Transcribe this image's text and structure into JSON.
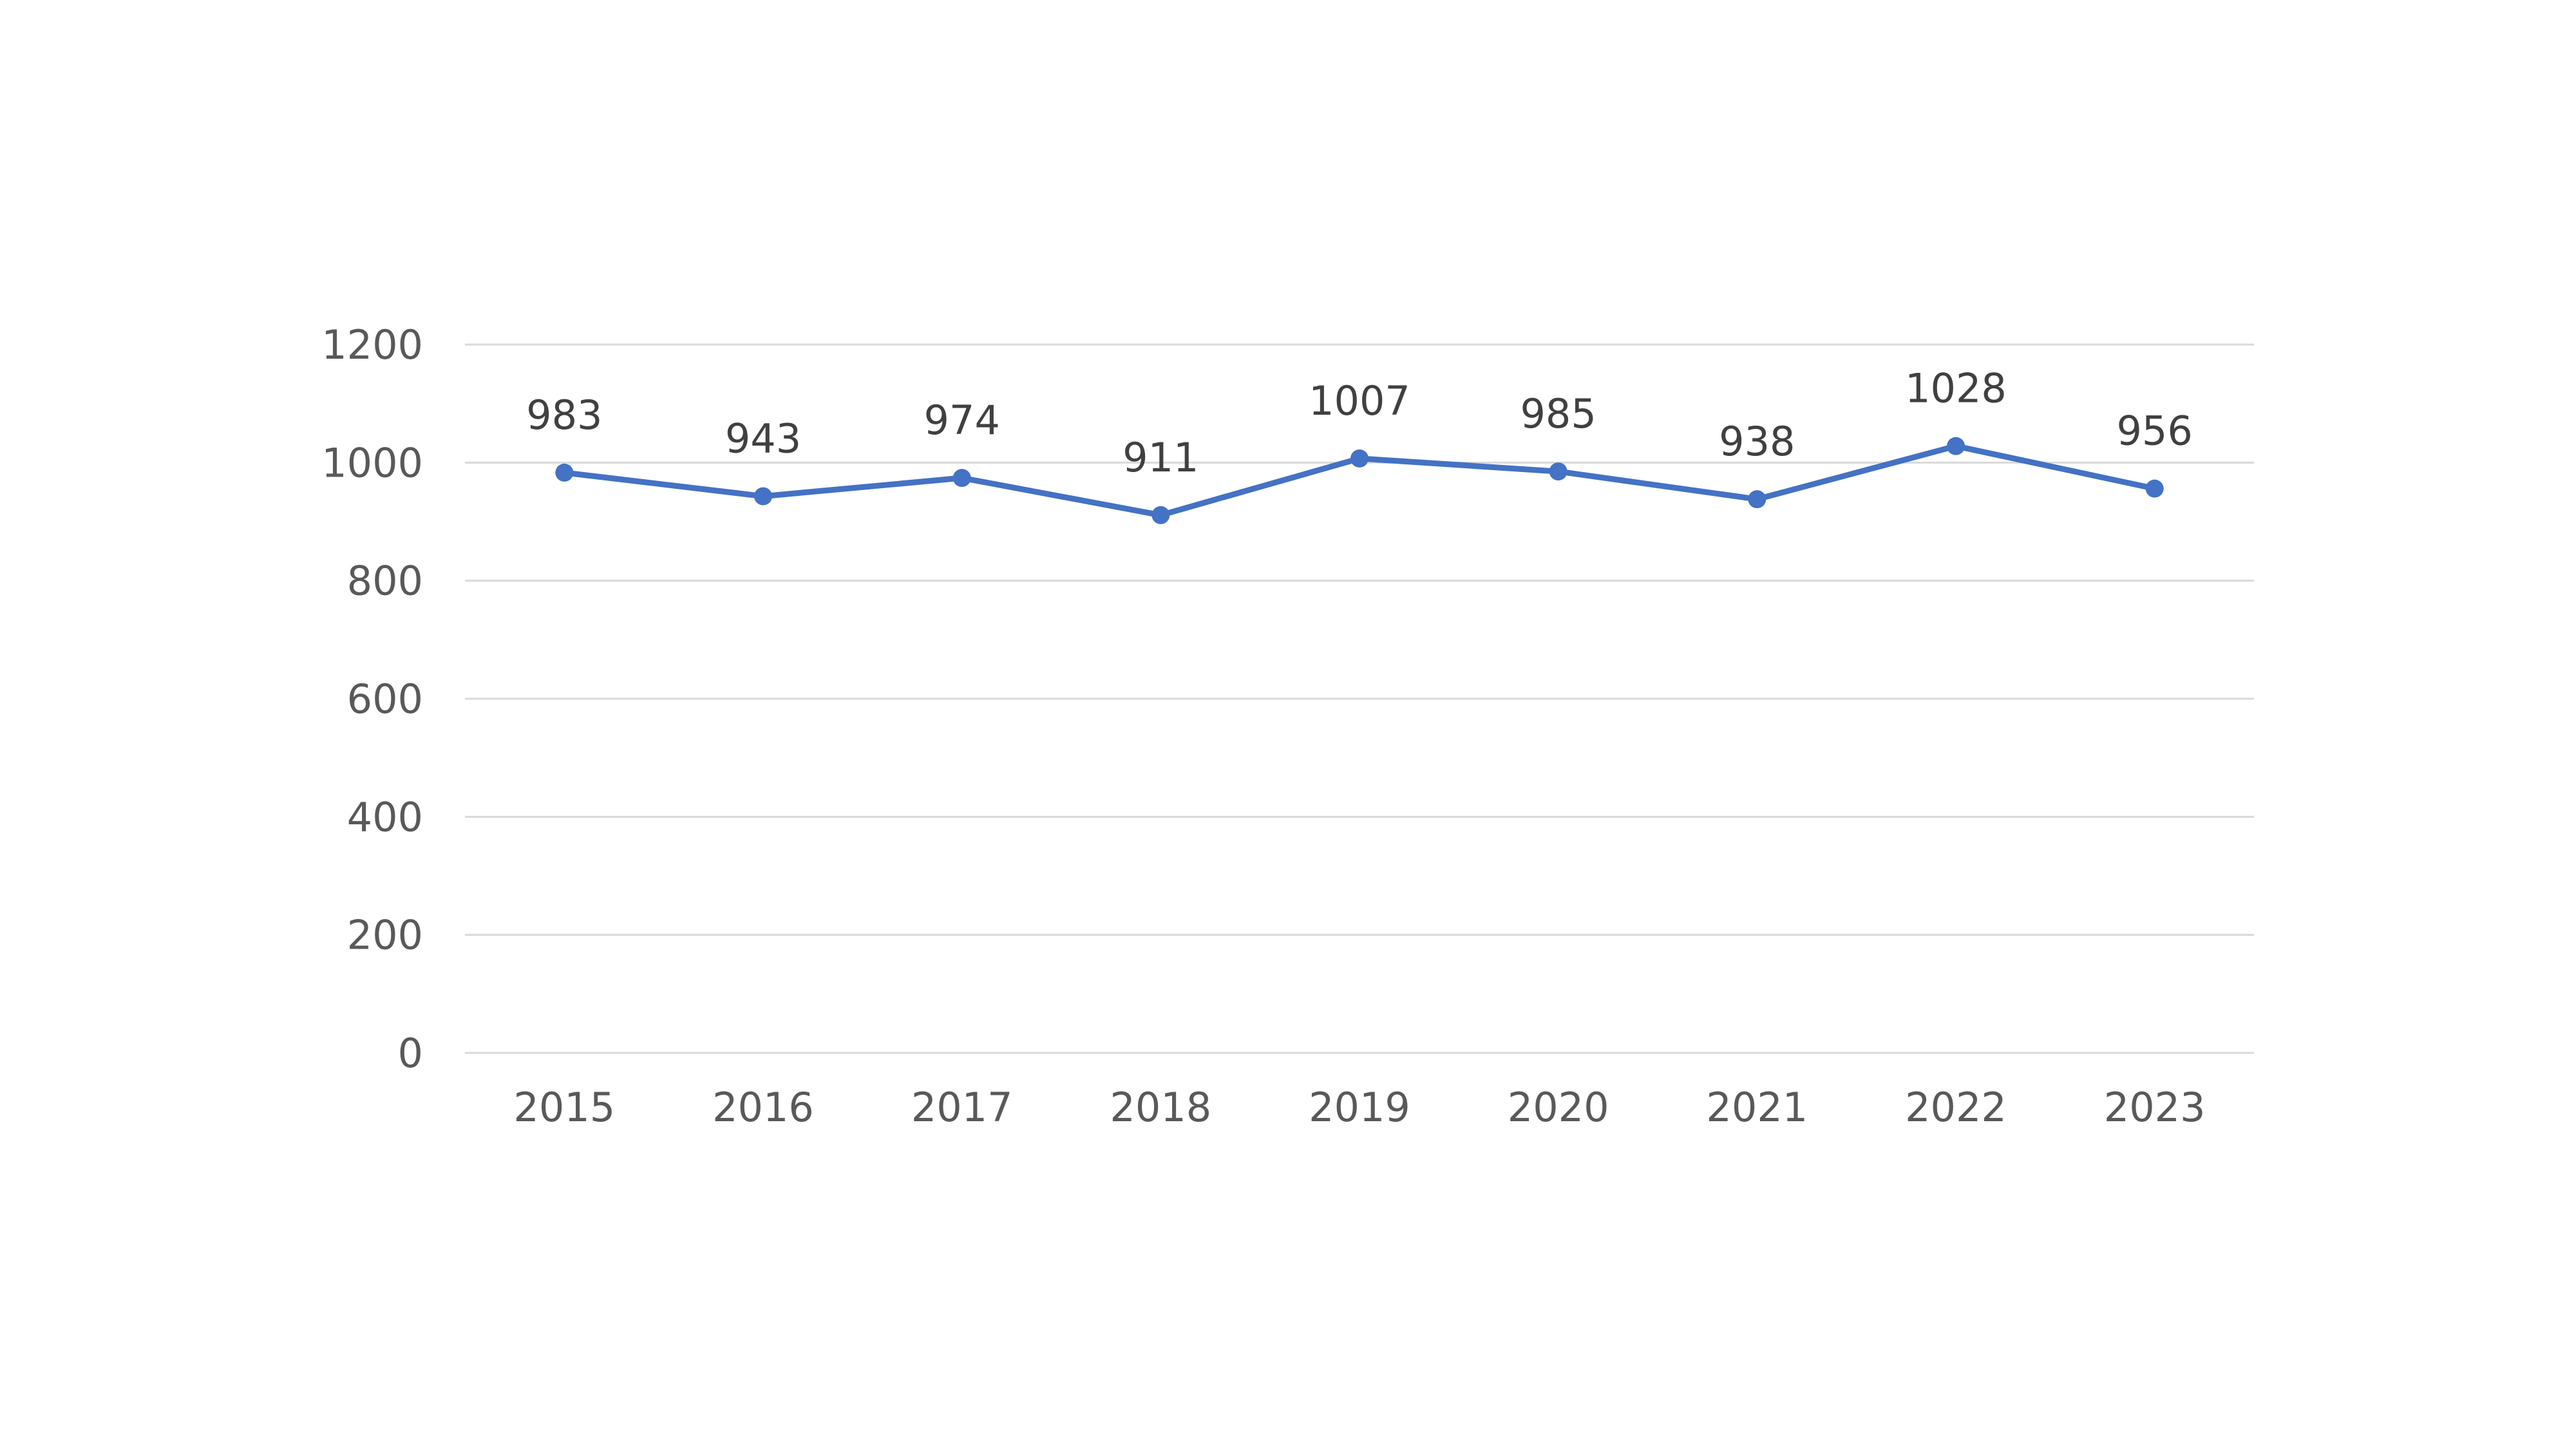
{
  "chart_data": {
    "type": "line",
    "title": "",
    "xlabel": "",
    "ylabel": "",
    "categories": [
      "2015",
      "2016",
      "2017",
      "2018",
      "2019",
      "2020",
      "2021",
      "2022",
      "2023"
    ],
    "series": [
      {
        "values": [
          983,
          943,
          974,
          911,
          1007,
          985,
          938,
          1028,
          956
        ],
        "color": "#4472c4"
      }
    ],
    "ylim": [
      0,
      1200
    ],
    "yticks": [
      0,
      200,
      400,
      600,
      800,
      1000,
      1200
    ],
    "grid": true,
    "legend": "none",
    "data_labels": true,
    "markers": "circle"
  }
}
